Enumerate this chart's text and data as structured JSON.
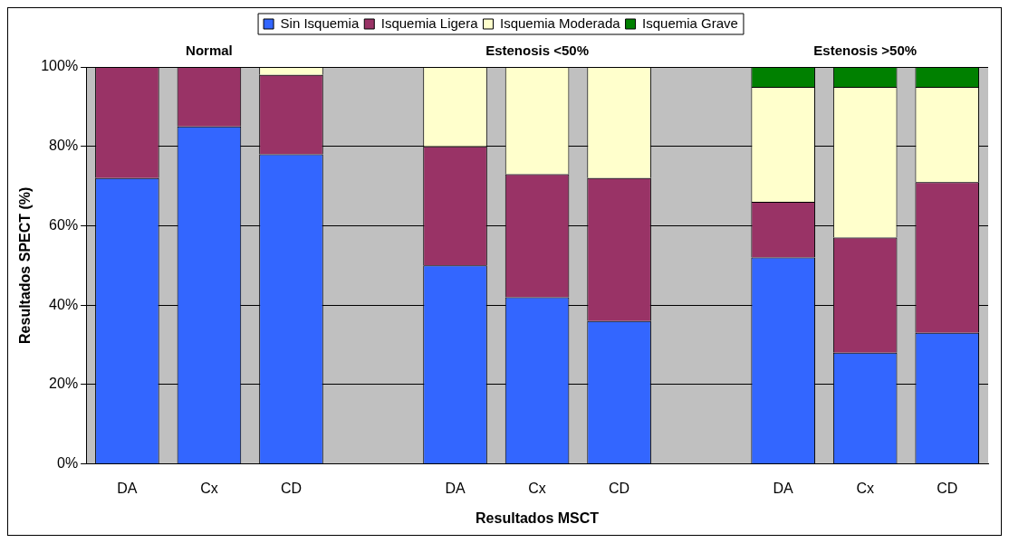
{
  "chart_data": {
    "type": "bar",
    "stacked": true,
    "xlabel": "Resultados MSCT",
    "ylabel": "Resultados SPECT (%)",
    "annotations": [
      "Normal",
      "Estenosis <50%",
      "Estenosis >50%"
    ],
    "categories": [
      "DA",
      "Cx",
      "CD",
      null,
      "DA",
      "Cx",
      "CD",
      null,
      "DA",
      "Cx",
      "CD"
    ],
    "series": [
      {
        "name": "Sin Isquemia",
        "color": "#3366ff",
        "values": [
          72,
          85,
          78,
          null,
          50,
          42,
          36,
          null,
          52,
          28,
          33
        ]
      },
      {
        "name": "Isquemia Ligera",
        "color": "#993366",
        "values": [
          28,
          15,
          20,
          null,
          30,
          31,
          36,
          null,
          14,
          29,
          38
        ]
      },
      {
        "name": "Isquemia Moderada",
        "color": "#ffffcc",
        "values": [
          0,
          0,
          2,
          null,
          20,
          27,
          28,
          null,
          29,
          38,
          24
        ]
      },
      {
        "name": "Isquemia Grave",
        "color": "#008000",
        "values": [
          0,
          0,
          0,
          null,
          0,
          0,
          0,
          null,
          5,
          5,
          5
        ]
      }
    ],
    "ylim": [
      0,
      100
    ],
    "yticks": [
      {
        "value": 0,
        "label": "0%"
      },
      {
        "value": 20,
        "label": "20%"
      },
      {
        "value": 40,
        "label": "40%"
      },
      {
        "value": 60,
        "label": "60%"
      },
      {
        "value": 80,
        "label": "80%"
      },
      {
        "value": 100,
        "label": "100%"
      }
    ],
    "grid": "y",
    "legend": "top"
  }
}
